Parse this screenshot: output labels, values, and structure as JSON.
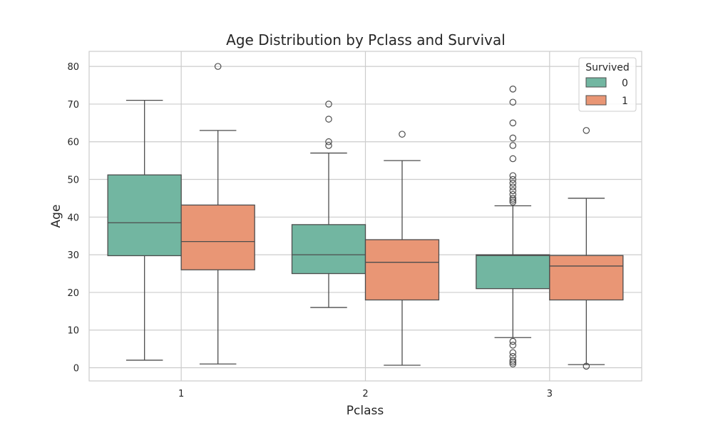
{
  "chart_data": {
    "type": "boxplot",
    "title": "Age Distribution by Pclass and Survival",
    "xlabel": "Pclass",
    "ylabel": "Age",
    "categories": [
      "1",
      "2",
      "3"
    ],
    "ylim": [
      -3.5,
      84
    ],
    "yticks": [
      0,
      10,
      20,
      30,
      40,
      50,
      60,
      70,
      80
    ],
    "grid": true,
    "legend": {
      "title": "Survived",
      "position": "top-right"
    },
    "series": [
      {
        "name": "0",
        "color": "#72b6a1",
        "boxes": [
          {
            "category": "1",
            "whisker_low": 2,
            "q1": 29.75,
            "median": 38.5,
            "q3": 51.2,
            "whisker_high": 71,
            "outliers": []
          },
          {
            "category": "2",
            "whisker_low": 16,
            "q1": 25,
            "median": 30,
            "q3": 38,
            "whisker_high": 57,
            "outliers": [
              59,
              60,
              66,
              70
            ]
          },
          {
            "category": "3",
            "whisker_low": 8,
            "q1": 21,
            "median": 29.8,
            "q3": 30,
            "whisker_high": 43,
            "outliers": [
              1,
              1.5,
              2,
              3,
              4,
              6,
              7,
              44,
              44.5,
              45,
              46,
              47,
              48,
              49,
              50,
              51,
              55.5,
              59,
              61,
              65,
              70.5,
              74
            ]
          }
        ]
      },
      {
        "name": "1",
        "color": "#e99675",
        "boxes": [
          {
            "category": "1",
            "whisker_low": 1,
            "q1": 26,
            "median": 33.5,
            "q3": 43.2,
            "whisker_high": 63,
            "outliers": [
              80
            ]
          },
          {
            "category": "2",
            "whisker_low": 0.67,
            "q1": 18,
            "median": 28,
            "q3": 34,
            "whisker_high": 55,
            "outliers": [
              62
            ]
          },
          {
            "category": "3",
            "whisker_low": 0.83,
            "q1": 18,
            "median": 27,
            "q3": 29.8,
            "whisker_high": 45,
            "outliers": [
              0.42,
              63
            ]
          }
        ]
      }
    ]
  }
}
